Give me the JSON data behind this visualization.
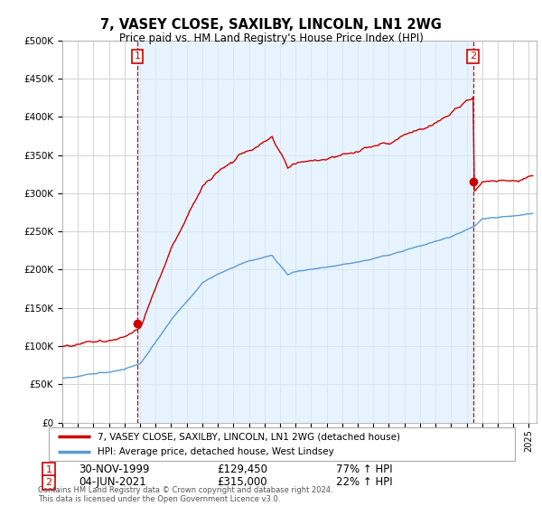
{
  "title": "7, VASEY CLOSE, SAXILBY, LINCOLN, LN1 2WG",
  "subtitle": "Price paid vs. HM Land Registry's House Price Index (HPI)",
  "sale1_date": "30-NOV-1999",
  "sale1_price": 129450,
  "sale1_hpi": "77% ↑ HPI",
  "sale2_date": "04-JUN-2021",
  "sale2_price": 315000,
  "sale2_hpi": "22% ↑ HPI",
  "legend_line1": "7, VASEY CLOSE, SAXILBY, LINCOLN, LN1 2WG (detached house)",
  "legend_line2": "HPI: Average price, detached house, West Lindsey",
  "footer": "Contains HM Land Registry data © Crown copyright and database right 2024.\nThis data is licensed under the Open Government Licence v3.0.",
  "hpi_color": "#5b9bd5",
  "price_color": "#cc0000",
  "shade_color": "#ddeeff",
  "background_color": "#ffffff",
  "grid_color": "#cccccc",
  "ylim": [
    0,
    500000
  ],
  "yticks": [
    0,
    50000,
    100000,
    150000,
    200000,
    250000,
    300000,
    350000,
    400000,
    450000,
    500000
  ],
  "xlim_start": 1995.0,
  "xlim_end": 2025.5,
  "sale1_t": 1999.833,
  "sale2_t": 2021.417
}
